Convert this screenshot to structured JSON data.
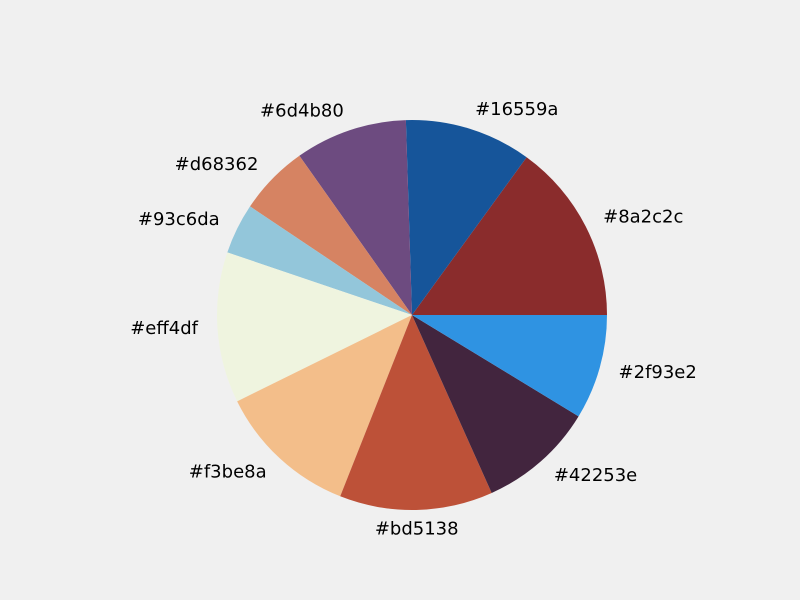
{
  "chart_data": {
    "type": "pie",
    "start_angle_deg": 0,
    "direction": "counterclockwise",
    "legend": "none",
    "slices": [
      {
        "label": "#8a2c2c",
        "value": 15.0,
        "color": "#8a2c2c"
      },
      {
        "label": "#16559a",
        "value": 10.5,
        "color": "#16559a"
      },
      {
        "label": "#6d4b80",
        "value": 9.3,
        "color": "#6d4b80"
      },
      {
        "label": "#d68362",
        "value": 5.8,
        "color": "#d68362"
      },
      {
        "label": "#93c6da",
        "value": 4.2,
        "color": "#93c6da"
      },
      {
        "label": "#eff4df",
        "value": 12.5,
        "color": "#eff4df"
      },
      {
        "label": "#f3be8a",
        "value": 11.7,
        "color": "#f3be8a"
      },
      {
        "label": "#bd5138",
        "value": 12.7,
        "color": "#bd5138"
      },
      {
        "label": "#42253e",
        "value": 9.6,
        "color": "#42253e"
      },
      {
        "label": "#2f93e2",
        "value": 8.7,
        "color": "#2f93e2"
      }
    ]
  }
}
